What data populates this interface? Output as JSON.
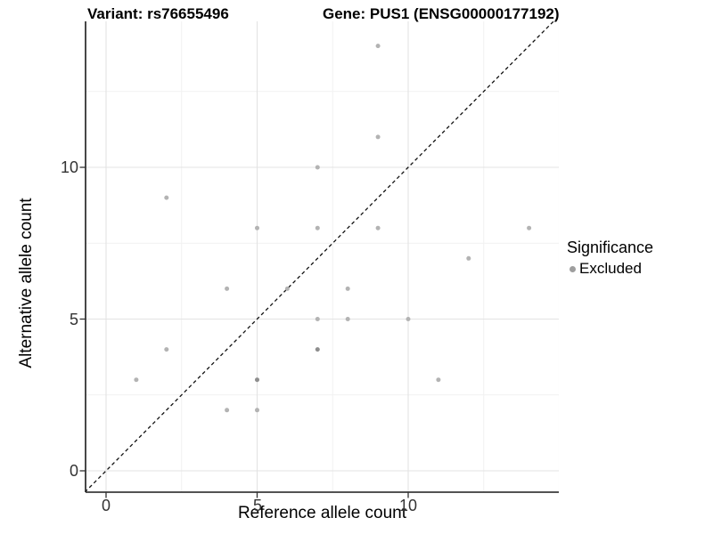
{
  "titles": {
    "left": "Variant: rs76655496",
    "right": "Gene: PUS1 (ENSG00000177192)"
  },
  "chart_data": {
    "type": "scatter",
    "title": "Variant: rs76655496   Gene: PUS1 (ENSG00000177192)",
    "xlabel": "Reference allele count",
    "ylabel": "Alternative allele count",
    "x_tick_labels": [
      "0",
      "5",
      "10"
    ],
    "y_tick_labels": [
      "0",
      "5",
      "10"
    ],
    "x_ticks": [
      0,
      5,
      10
    ],
    "y_ticks": [
      0,
      5,
      10
    ],
    "x_major_grid": [
      0,
      5,
      10,
      15
    ],
    "y_major_grid": [
      0,
      5,
      10
    ],
    "x_minor_grid": [
      2.5,
      7.5,
      12.5
    ],
    "y_minor_grid": [
      2.5,
      7.5,
      12.5
    ],
    "xlim": [
      -0.7,
      15.0
    ],
    "ylim": [
      -0.7,
      14.8
    ],
    "grid": true,
    "identity_line": "y = x, black dashed, from lower-left to upper-right",
    "legend": {
      "title": "Significance",
      "position": "right",
      "items": [
        {
          "label": "Excluded"
        }
      ]
    },
    "series": [
      {
        "name": "Excluded",
        "points": [
          {
            "x": 1,
            "y": 3,
            "n": 1
          },
          {
            "x": 2,
            "y": 4,
            "n": 1
          },
          {
            "x": 2,
            "y": 9,
            "n": 1
          },
          {
            "x": 4,
            "y": 2,
            "n": 1
          },
          {
            "x": 4,
            "y": 6,
            "n": 1
          },
          {
            "x": 5,
            "y": 2,
            "n": 1
          },
          {
            "x": 5,
            "y": 3,
            "n": 2
          },
          {
            "x": 5,
            "y": 8,
            "n": 1
          },
          {
            "x": 6,
            "y": 6,
            "n": 1
          },
          {
            "x": 7,
            "y": 4,
            "n": 2
          },
          {
            "x": 7,
            "y": 5,
            "n": 1
          },
          {
            "x": 7,
            "y": 8,
            "n": 1
          },
          {
            "x": 7,
            "y": 10,
            "n": 1
          },
          {
            "x": 8,
            "y": 5,
            "n": 1
          },
          {
            "x": 8,
            "y": 6,
            "n": 1
          },
          {
            "x": 9,
            "y": 8,
            "n": 1
          },
          {
            "x": 9,
            "y": 11,
            "n": 1
          },
          {
            "x": 9,
            "y": 14,
            "n": 1
          },
          {
            "x": 10,
            "y": 5,
            "n": 1
          },
          {
            "x": 11,
            "y": 3,
            "n": 1
          },
          {
            "x": 12,
            "y": 7,
            "n": 1
          },
          {
            "x": 14,
            "y": 8,
            "n": 1
          }
        ]
      }
    ]
  },
  "colors": {
    "point": "#b3b3b3",
    "point_overplotted": "#8e8e8e",
    "legend_point": "#9e9e9e",
    "grid_major": "#e3e3e3",
    "grid_minor": "#f1f1f1",
    "axis_line": "#1a1a1a",
    "tick_mark": "#333333",
    "identity_line": "#111111",
    "background": "#ffffff"
  }
}
